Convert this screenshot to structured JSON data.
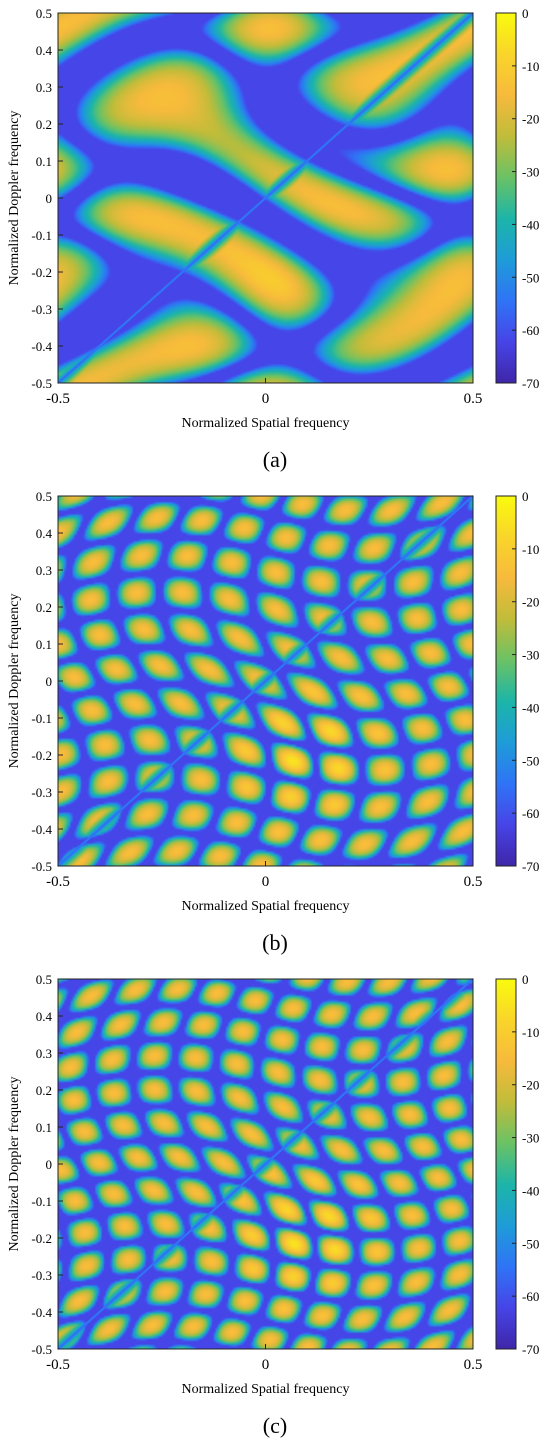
{
  "panels": [
    {
      "caption": "(a)",
      "chart_data": {
        "type": "heatmap",
        "xlabel": "Normalized Spatial frequency",
        "ylabel": "Normalized Doppler frequency",
        "xlim": [
          -0.5,
          0.5
        ],
        "ylim": [
          -0.5,
          0.5
        ],
        "xticks": [
          "-0.5",
          "0",
          "0.5"
        ],
        "yticks": [
          "-0.5",
          "-0.4",
          "-0.3",
          "-0.2",
          "-0.1",
          "0",
          "0.1",
          "0.2",
          "0.3",
          "0.4",
          "0.5"
        ],
        "colorbar": {
          "range": [
            -70,
            0
          ],
          "ticks": [
            "0",
            "-10",
            "-20",
            "-30",
            "-40",
            "-50",
            "-60",
            "-70"
          ]
        },
        "peak": {
          "x": 0.1,
          "y": -0.2
        },
        "clutter_ridge": {
          "from": [
            -0.5,
            -0.5
          ],
          "to": [
            0.5,
            0.5
          ]
        },
        "lobes": {
          "x": 2,
          "y": 3
        }
      }
    },
    {
      "caption": "(b)",
      "chart_data": {
        "type": "heatmap",
        "xlabel": "Normalized Spatial frequency",
        "ylabel": "Normalized Doppler frequency",
        "xlim": [
          -0.5,
          0.5
        ],
        "ylim": [
          -0.5,
          0.5
        ],
        "xticks": [
          "-0.5",
          "0",
          "0.5"
        ],
        "yticks": [
          "-0.5",
          "-0.4",
          "-0.3",
          "-0.2",
          "-0.1",
          "0",
          "0.1",
          "0.2",
          "0.3",
          "0.4",
          "0.5"
        ],
        "colorbar": {
          "range": [
            -70,
            0
          ],
          "ticks": [
            "0",
            "-10",
            "-20",
            "-30",
            "-40",
            "-50",
            "-60",
            "-70"
          ]
        },
        "peak": {
          "x": 0.1,
          "y": -0.2
        },
        "clutter_ridge": {
          "from": [
            -0.5,
            -0.5
          ],
          "to": [
            0.5,
            0.5
          ]
        },
        "lobes": {
          "x": 9,
          "y": 10
        }
      }
    },
    {
      "caption": "(c)",
      "chart_data": {
        "type": "heatmap",
        "xlabel": "Normalized Spatial frequency",
        "ylabel": "Normalized Doppler frequency",
        "xlim": [
          -0.5,
          0.5
        ],
        "ylim": [
          -0.5,
          0.5
        ],
        "xticks": [
          "-0.5",
          "0",
          "0.5"
        ],
        "yticks": [
          "-0.5",
          "-0.4",
          "-0.3",
          "-0.2",
          "-0.1",
          "0",
          "0.1",
          "0.2",
          "0.3",
          "0.4",
          "0.5"
        ],
        "colorbar": {
          "range": [
            -70,
            0
          ],
          "ticks": [
            "0",
            "-10",
            "-20",
            "-30",
            "-40",
            "-50",
            "-60",
            "-70"
          ]
        },
        "peak": {
          "x": 0.1,
          "y": -0.2
        },
        "clutter_ridge": {
          "from": [
            -0.5,
            -0.5
          ],
          "to": [
            0.5,
            0.5
          ]
        },
        "lobes": {
          "x": 10,
          "y": 11
        }
      }
    }
  ],
  "colors": {
    "parula": [
      "#3E26A8",
      "#4744E7",
      "#2F74F6",
      "#1E9CD8",
      "#1CB5A8",
      "#6AC265",
      "#C0BC3A",
      "#F7BA3C",
      "#F9D52A",
      "#F9FB0E"
    ]
  }
}
